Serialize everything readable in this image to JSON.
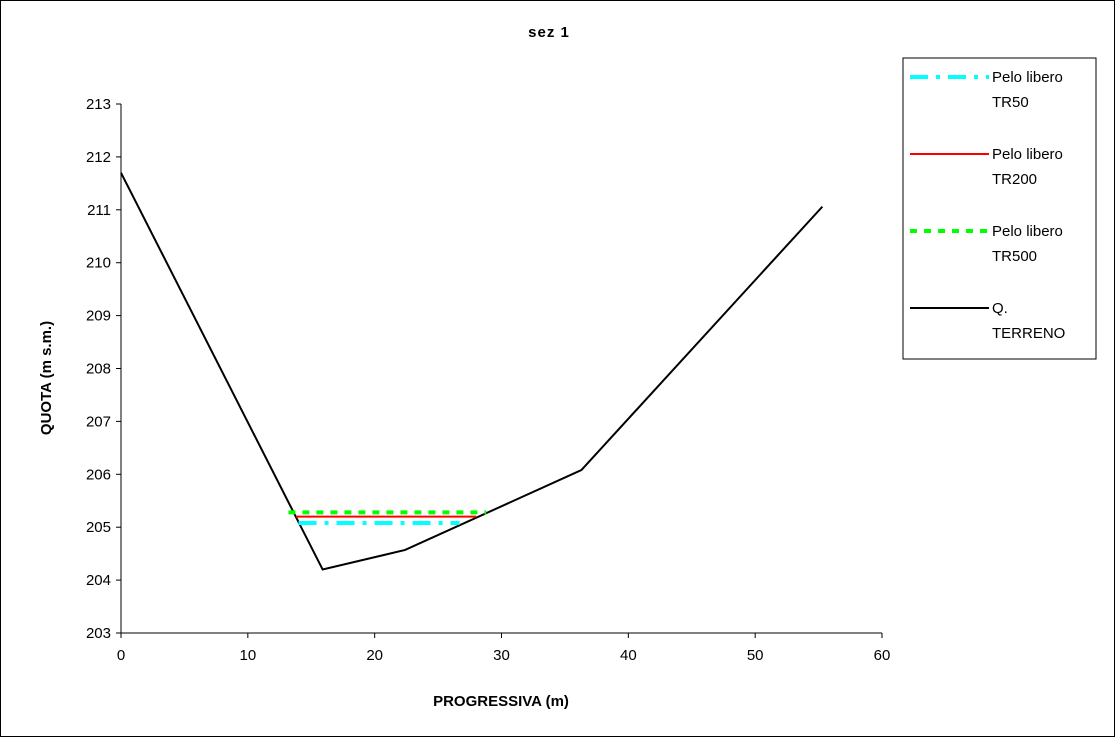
{
  "chart_data": {
    "type": "line",
    "title": "sez 1",
    "xlabel": "PROGRESSIVA (m)",
    "ylabel": "QUOTA (m s.m.)",
    "xlim": [
      0,
      60
    ],
    "ylim": [
      203,
      213
    ],
    "xticks": [
      0,
      10,
      20,
      30,
      40,
      50,
      60
    ],
    "yticks": [
      203,
      204,
      205,
      206,
      207,
      208,
      209,
      210,
      211,
      212,
      213
    ],
    "grid": false,
    "legend_position": "right",
    "series": [
      {
        "name": "Pelo libero TR50",
        "legend_lines": [
          "Pelo libero",
          "TR50"
        ],
        "color": "#00ffff",
        "dash": "dash-dot",
        "x": [
          14,
          26.7
        ],
        "y": [
          205.08,
          205.08
        ]
      },
      {
        "name": "Pelo libero TR200",
        "legend_lines": [
          "Pelo libero",
          "TR200"
        ],
        "color": "#ff0000",
        "dash": "solid",
        "x": [
          13.8,
          28
        ],
        "y": [
          205.2,
          205.2
        ]
      },
      {
        "name": "Pelo libero TR500",
        "legend_lines": [
          "Pelo libero",
          "TR500"
        ],
        "color": "#00ff00",
        "dash": "dotted",
        "x": [
          13.2,
          28.8
        ],
        "y": [
          205.28,
          205.28
        ]
      },
      {
        "name": "Q. TERRENO",
        "legend_lines": [
          "Q.",
          "TERRENO"
        ],
        "color": "#000000",
        "dash": "solid",
        "x": [
          0,
          15.9,
          22.4,
          36.3,
          55.3
        ],
        "y": [
          211.7,
          204.2,
          204.57,
          206.08,
          211.06
        ]
      }
    ]
  }
}
